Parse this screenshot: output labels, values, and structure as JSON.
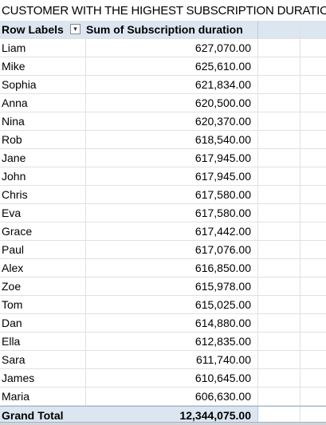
{
  "title": "CUSTOMER WITH THE HIGHEST SUBSCRIPTION DURATION",
  "pivot": {
    "header": {
      "row_labels": "Row Labels",
      "value_header": "Sum of Subscription duration",
      "filter_icon": "sort-filter-icon"
    },
    "rows": [
      {
        "name": "Liam",
        "value": "627,070.00"
      },
      {
        "name": "Mike",
        "value": "625,610.00"
      },
      {
        "name": "Sophia",
        "value": "621,834.00"
      },
      {
        "name": "Anna",
        "value": "620,500.00"
      },
      {
        "name": "Nina",
        "value": "620,370.00"
      },
      {
        "name": "Rob",
        "value": "618,540.00"
      },
      {
        "name": "Jane",
        "value": "617,945.00"
      },
      {
        "name": "John",
        "value": "617,945.00"
      },
      {
        "name": "Chris",
        "value": "617,580.00"
      },
      {
        "name": "Eva",
        "value": "617,580.00"
      },
      {
        "name": "Grace",
        "value": "617,442.00"
      },
      {
        "name": "Paul",
        "value": "617,076.00"
      },
      {
        "name": "Alex",
        "value": "616,850.00"
      },
      {
        "name": "Zoe",
        "value": "615,978.00"
      },
      {
        "name": "Tom",
        "value": "615,025.00"
      },
      {
        "name": "Dan",
        "value": "614,880.00"
      },
      {
        "name": "Ella",
        "value": "612,835.00"
      },
      {
        "name": "Sara",
        "value": "611,740.00"
      },
      {
        "name": "James",
        "value": "610,645.00"
      },
      {
        "name": "Maria",
        "value": "606,630.00"
      }
    ],
    "grand_total": {
      "label": "Grand Total",
      "value": "12,344,075.00"
    }
  },
  "colors": {
    "header_fill": "#dce6f1",
    "grid_line": "#e1e1e1",
    "total_border": "#9bb3d6"
  }
}
